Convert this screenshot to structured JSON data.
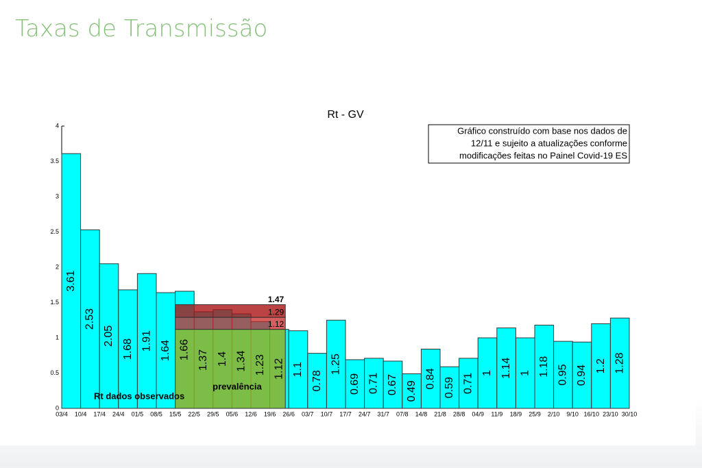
{
  "page_title": "Taxas de Transmissão",
  "chart_data": {
    "type": "histogram",
    "title": "Rt - GV",
    "bins": [
      "03/4",
      "10/4",
      "17/4",
      "24/4",
      "01/5",
      "08/5",
      "15/5",
      "22/5",
      "29/5",
      "05/6",
      "12/6",
      "19/6",
      "26/6",
      "03/7",
      "10/7",
      "17/7",
      "24/7",
      "31/7",
      "07/8",
      "14/8",
      "21/8",
      "28/8",
      "04/9",
      "11/9",
      "18/9",
      "25/9",
      "2/10",
      "9/10",
      "16/10",
      "23/10",
      "30/10"
    ],
    "values": [
      3.61,
      2.53,
      2.05,
      1.68,
      1.91,
      1.64,
      1.66,
      1.37,
      1.4,
      1.34,
      1.23,
      1.12,
      1.1,
      0.78,
      1.25,
      0.69,
      0.71,
      0.67,
      0.49,
      0.84,
      0.59,
      0.71,
      1,
      1.14,
      1,
      1.18,
      0.95,
      0.94,
      1.2,
      1.28
    ],
    "color": "#00ffff",
    "ylim": [
      0,
      4
    ],
    "yticks": [
      0,
      0.5,
      1,
      1.5,
      2,
      2.5,
      3,
      3.5,
      4
    ],
    "series_label": "Rt dados observados",
    "prevalence": {
      "label": "prevalência",
      "from": "15/5",
      "to": "26/6",
      "levels": [
        1.12,
        1.29,
        1.47
      ]
    },
    "note": [
      "Gráfico construído com base nos dados de",
      "12/11 e sujeito a atualizações conforme",
      "modificações feitas no Painel Covid-19 ES"
    ]
  }
}
